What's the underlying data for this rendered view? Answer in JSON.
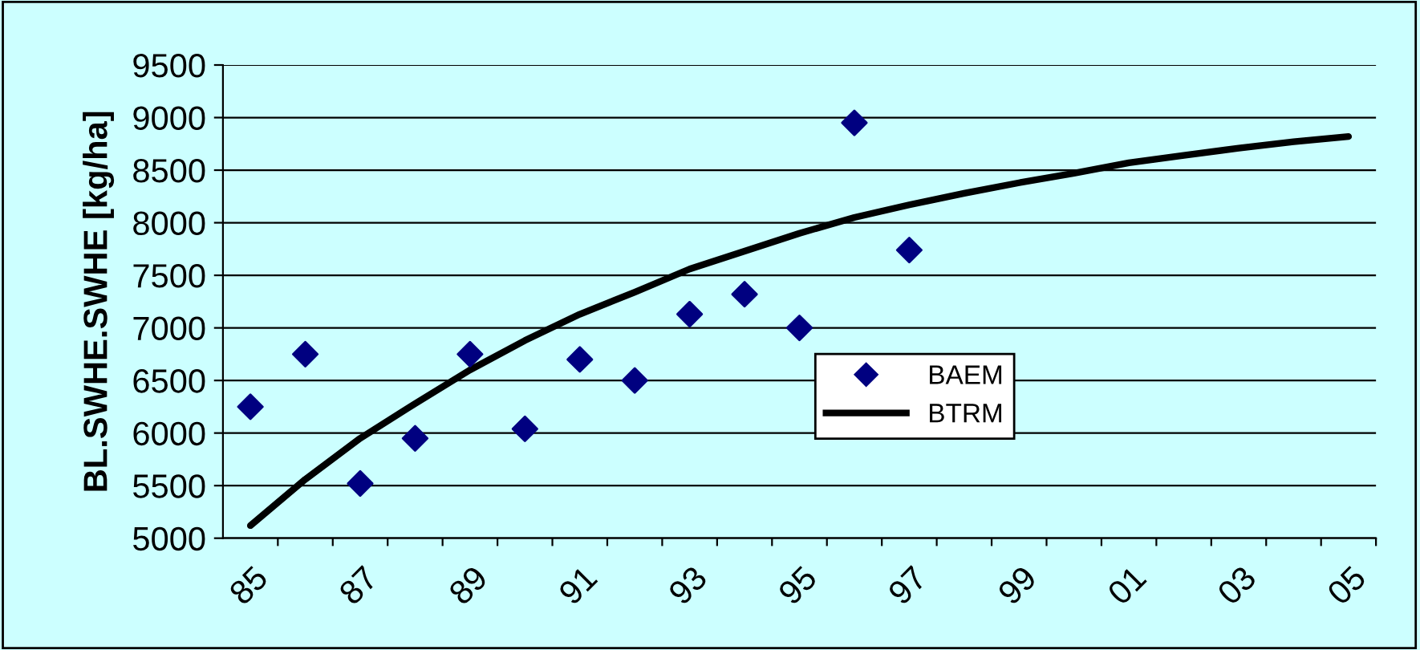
{
  "chart_data": {
    "type": "line",
    "ylabel": "BL.SWHE.SWHE [kg/ha]",
    "categories": [
      "85",
      null,
      "87",
      null,
      "89",
      null,
      "91",
      null,
      "93",
      null,
      "95",
      null,
      "97",
      null,
      "99",
      null,
      "01",
      null,
      "03",
      null,
      "05"
    ],
    "series": [
      {
        "name": "BAEM",
        "type": "scatter",
        "color": "#000080",
        "marker": "diamond",
        "values": [
          6250,
          6750,
          5520,
          5950,
          6750,
          6040,
          6700,
          6500,
          7130,
          7320,
          7000,
          8950,
          7740,
          null,
          null,
          null,
          null,
          null,
          null,
          null,
          null
        ]
      },
      {
        "name": "BTRM",
        "color": "#000000",
        "values": [
          5120,
          5560,
          5950,
          6280,
          6600,
          6880,
          7130,
          7340,
          7560,
          7730,
          7900,
          8050,
          8170,
          8280,
          8380,
          8470,
          8570,
          8640,
          8710,
          8770,
          8820
        ]
      }
    ],
    "ylim": [
      5000,
      9500
    ],
    "yticks": [
      5000,
      5500,
      6000,
      6500,
      7000,
      7500,
      8000,
      8500,
      9000,
      9500
    ],
    "grid": "y",
    "legend": "center"
  }
}
